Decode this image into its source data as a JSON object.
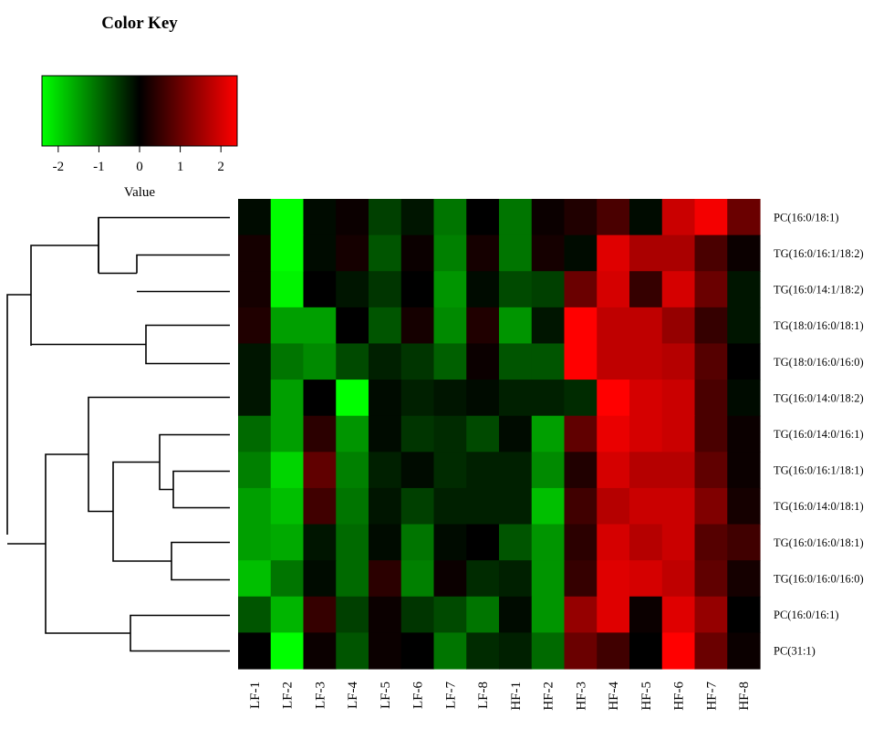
{
  "chart_data": {
    "type": "heatmap",
    "color_key": {
      "title": "Color Key",
      "xlabel": "Value",
      "range": [
        -2.4,
        2.4
      ],
      "ticks": [
        -2,
        -1,
        0,
        1,
        2
      ],
      "tick_labels": [
        "-2",
        "-1",
        "0",
        "1",
        "2"
      ],
      "colors": {
        "low": "#00ff00",
        "mid": "#000000",
        "high": "#ff0000"
      }
    },
    "columns": [
      "LF-1",
      "LF-2",
      "LF-3",
      "LF-4",
      "LF-5",
      "LF-6",
      "LF-7",
      "LF-8",
      "HF-1",
      "HF-2",
      "HF-3",
      "HF-4",
      "HF-5",
      "HF-6",
      "HF-7",
      "HF-8"
    ],
    "rows": [
      "PC(16:0/18:1)",
      "TG(16:0/16:1/18:2)",
      "TG(16:0/14:1/18:2)",
      "TG(18:0/16:0/18:1)",
      "TG(18:0/16:0/16:0)",
      "TG(16:0/14:0/18:2)",
      "TG(16:0/14:0/16:1)",
      "TG(16:0/16:1/18:1)",
      "TG(16:0/14:0/18:1)",
      "TG(16:0/16:0/18:1)",
      "TG(16:0/16:0/16:0)",
      "PC(16:0/16:1)",
      "PC(31:1)"
    ],
    "values": [
      [
        -0.1,
        -2.4,
        -0.1,
        0.1,
        -0.6,
        -0.2,
        -1.1,
        0.0,
        -1.1,
        0.1,
        0.3,
        0.7,
        -0.1,
        1.9,
        2.3,
        1.0
      ],
      [
        0.2,
        -2.4,
        -0.1,
        0.2,
        -0.8,
        0.1,
        -1.2,
        0.2,
        -1.1,
        0.2,
        -0.1,
        2.1,
        1.6,
        1.6,
        0.7,
        0.1
      ],
      [
        0.2,
        -2.3,
        0.0,
        -0.2,
        -0.5,
        0.0,
        -1.4,
        -0.1,
        -0.7,
        -0.6,
        1.0,
        2.0,
        0.5,
        2.0,
        1.0,
        -0.2
      ],
      [
        0.3,
        -1.5,
        -1.5,
        0.0,
        -0.8,
        0.2,
        -1.3,
        0.3,
        -1.4,
        -0.2,
        2.4,
        1.8,
        1.8,
        1.4,
        0.5,
        -0.2
      ],
      [
        -0.2,
        -1.1,
        -1.3,
        -0.7,
        -0.3,
        -0.5,
        -0.9,
        0.1,
        -0.8,
        -0.8,
        2.4,
        1.8,
        1.8,
        1.7,
        0.8,
        0.0
      ],
      [
        -0.2,
        -1.5,
        0.0,
        -2.4,
        -0.1,
        -0.3,
        -0.2,
        -0.1,
        -0.3,
        -0.3,
        -0.4,
        2.4,
        2.0,
        1.9,
        0.7,
        -0.1
      ],
      [
        -1.0,
        -1.5,
        0.4,
        -1.4,
        -0.1,
        -0.5,
        -0.4,
        -0.7,
        -0.1,
        -1.5,
        0.9,
        2.2,
        2.0,
        1.9,
        0.7,
        0.1
      ],
      [
        -1.2,
        -2.0,
        0.9,
        -1.2,
        -0.3,
        -0.1,
        -0.4,
        -0.3,
        -0.3,
        -1.3,
        0.3,
        2.0,
        1.7,
        1.7,
        0.9,
        0.1
      ],
      [
        -1.5,
        -1.8,
        0.6,
        -1.1,
        -0.2,
        -0.6,
        -0.3,
        -0.3,
        -0.3,
        -1.8,
        0.6,
        1.7,
        1.9,
        1.9,
        1.2,
        0.2
      ],
      [
        -1.5,
        -1.6,
        -0.2,
        -1.0,
        -0.1,
        -1.1,
        -0.1,
        0.0,
        -0.8,
        -1.4,
        0.4,
        2.0,
        1.7,
        1.9,
        0.8,
        0.6
      ],
      [
        -1.8,
        -1.1,
        -0.1,
        -1.0,
        0.4,
        -1.2,
        0.1,
        -0.4,
        -0.3,
        -1.4,
        0.5,
        2.1,
        2.0,
        1.8,
        0.9,
        0.2
      ],
      [
        -0.8,
        -1.7,
        0.5,
        -0.6,
        0.1,
        -0.5,
        -0.7,
        -1.1,
        -0.1,
        -1.4,
        1.4,
        2.1,
        0.1,
        2.1,
        1.4,
        0.0
      ],
      [
        0.0,
        -2.4,
        0.1,
        -0.8,
        0.1,
        0.0,
        -1.1,
        -0.4,
        -0.3,
        -1.0,
        1.0,
        0.6,
        0.0,
        2.5,
        1.0,
        0.1
      ]
    ]
  }
}
